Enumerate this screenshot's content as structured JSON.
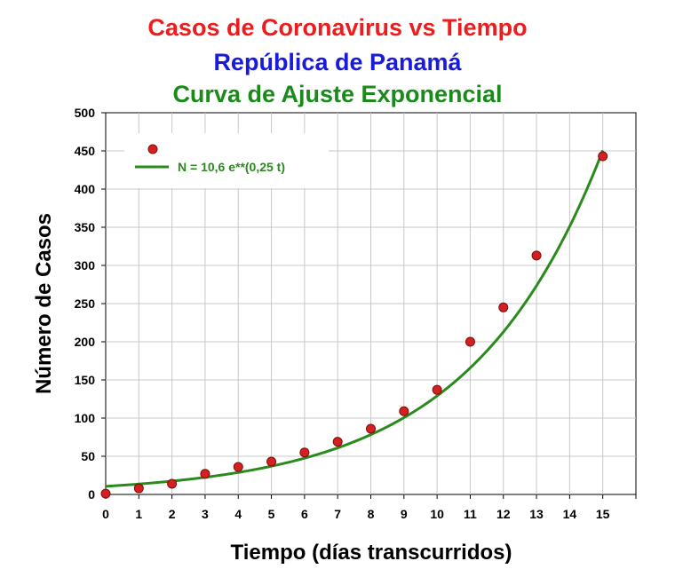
{
  "chart_data": {
    "type": "scatter",
    "title_lines": [
      {
        "text": "Casos de Coronavirus vs Tiempo",
        "color": "#ee1c1c"
      },
      {
        "text": "República de Panamá",
        "color": "#1a1adb"
      },
      {
        "text": "Curva de Ajuste Exponencial",
        "color": "#1a8a1a"
      }
    ],
    "xlabel": "Tiempo (días transcurridos)",
    "ylabel": "Número de Casos",
    "xlim": [
      0,
      16
    ],
    "ylim": [
      0,
      500
    ],
    "x_ticks": [
      "0",
      "1",
      "2",
      "3",
      "4",
      "5",
      "6",
      "7",
      "8",
      "9",
      "10",
      "11",
      "12",
      "13",
      "14",
      "15"
    ],
    "y_ticks": [
      "0",
      "50",
      "100",
      "150",
      "200",
      "250",
      "300",
      "350",
      "400",
      "450",
      "500"
    ],
    "grid": true,
    "legend_position": "top-left",
    "series": [
      {
        "kind": "points",
        "color": "#d42020",
        "x": [
          0,
          1,
          2,
          3,
          4,
          5,
          6,
          7,
          8,
          9,
          10,
          11,
          12,
          13,
          15
        ],
        "y": [
          1,
          8,
          14,
          27,
          36,
          43,
          55,
          69,
          86,
          109,
          137,
          200,
          245,
          313,
          443
        ]
      },
      {
        "kind": "fit-curve",
        "name": "N = 10,6 e**(0,25 t)",
        "color": "#2a8a1e",
        "model": {
          "a": 10.6,
          "b": 0.25
        },
        "x_range": [
          0,
          15
        ]
      }
    ]
  }
}
